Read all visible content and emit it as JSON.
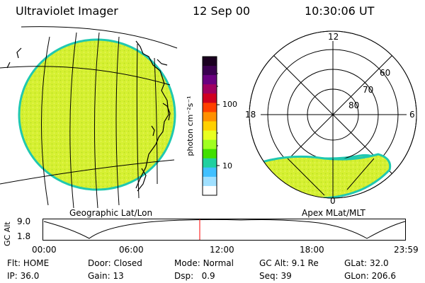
{
  "header": {
    "instrument": "Ultraviolet Imager",
    "date": "12 Sep 00",
    "time": "10:30:06 UT"
  },
  "geo_panel": {
    "label": "Geographic Lat/Lon"
  },
  "colorbar": {
    "label": "photon cm⁻²s⁻¹",
    "ticks": [
      "100",
      "10"
    ],
    "colors": [
      "#1a0020",
      "#3a0050",
      "#6a0080",
      "#a00060",
      "#d00020",
      "#ff4000",
      "#ff9000",
      "#ffd000",
      "#e8ff20",
      "#a0ff20",
      "#40e000",
      "#20d0a0",
      "#40c0ff",
      "#a0e0ff",
      "#ffffff"
    ]
  },
  "polar_panel": {
    "label": "Apex MLat/MLT",
    "mlt_labels": [
      "12",
      "18",
      "6",
      "0"
    ],
    "lat_labels": [
      "60",
      "70",
      "80"
    ]
  },
  "alt_plot": {
    "axis_title": "GC Alt",
    "y_ticks": [
      "9.0",
      "1.8"
    ],
    "x_ticks": [
      "00:00",
      "06:00",
      "12:00",
      "18:00",
      "23:59"
    ],
    "current_time_marker_color": "#ff0000"
  },
  "status": {
    "row1": [
      {
        "key": "Flt:",
        "value": "HOME"
      },
      {
        "key": "Door:",
        "value": "Closed"
      },
      {
        "key": "Mode:",
        "value": "Normal"
      },
      {
        "key": "GC Alt:",
        "value": "9.1 Re"
      },
      {
        "key": "GLat:",
        "value": "32.0"
      }
    ],
    "row2": [
      {
        "key": "IP:",
        "value": "36.0"
      },
      {
        "key": "Gain:",
        "value": "13"
      },
      {
        "key": "Dsp:",
        "value": "0.9"
      },
      {
        "key": "Seq:",
        "value": "39"
      },
      {
        "key": "GLon:",
        "value": "206.6"
      }
    ]
  },
  "colors": {
    "aurora_fill": "#d6f032",
    "aurora_edge": "#20c8b0"
  }
}
